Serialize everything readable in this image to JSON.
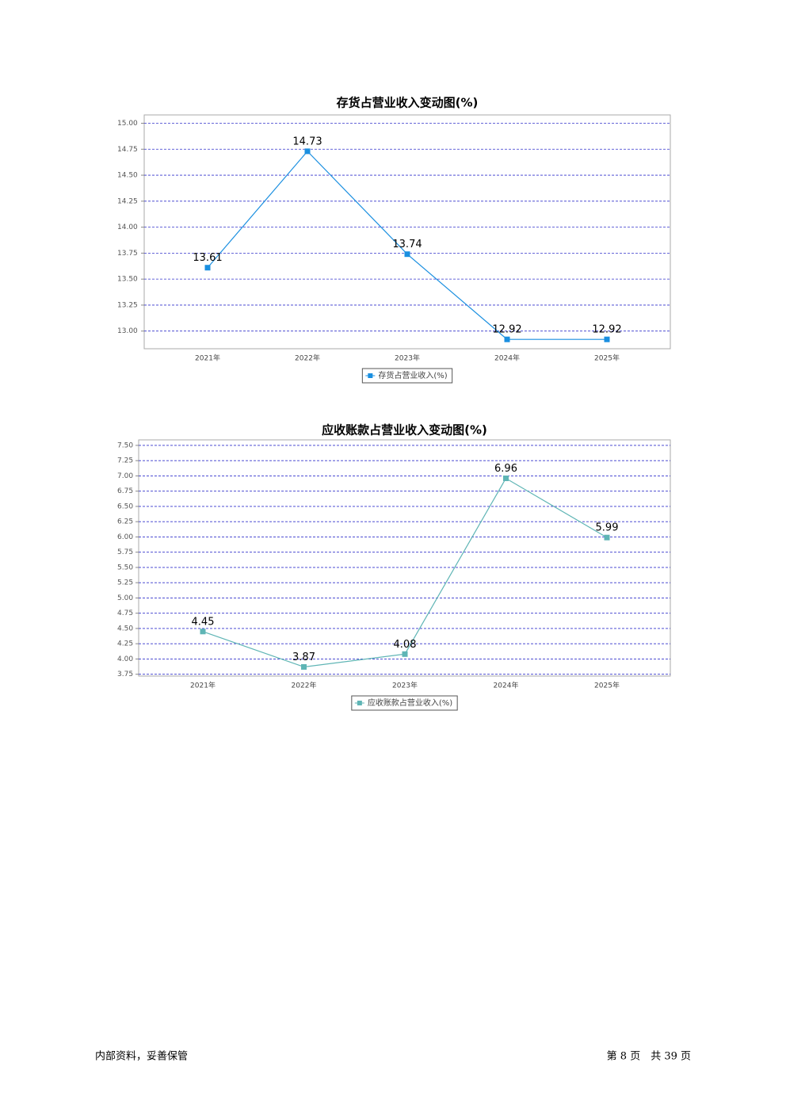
{
  "chart_data": [
    {
      "type": "line",
      "title": "存货占营业收入变动图(%)",
      "categories": [
        "2021年",
        "2022年",
        "2023年",
        "2024年",
        "2025年"
      ],
      "series": [
        {
          "name": "存货占营业收入(%)",
          "color": "#1a8fe0",
          "values": [
            13.61,
            14.73,
            13.74,
            12.92,
            12.92
          ]
        }
      ],
      "ylim": [
        12.83,
        15.08
      ],
      "yticks": [
        {
          "value": 13,
          "label": "13.00"
        },
        13.25,
        {
          "value": 13.5,
          "label": "13.50"
        },
        13.75,
        {
          "value": 14,
          "label": "14.00"
        },
        14.25,
        {
          "value": 14.5,
          "label": "14.50"
        },
        14.75,
        {
          "value": 15,
          "label": "15.00"
        }
      ],
      "grid": true
    },
    {
      "type": "line",
      "title": "应收账款占营业收入变动图(%)",
      "categories": [
        "2021年",
        "2022年",
        "2023年",
        "2024年",
        "2025年"
      ],
      "series": [
        {
          "name": "应收账款占营业收入(%)",
          "color": "#5fb5b5",
          "values": [
            4.45,
            3.87,
            4.08,
            6.96,
            5.99
          ]
        }
      ],
      "ylim": [
        3.72,
        7.59
      ],
      "yticks": [
        3.75,
        {
          "value": 4,
          "label": "4.00"
        },
        4.25,
        {
          "value": 4.5,
          "label": "4.50"
        },
        4.75,
        {
          "value": 5,
          "label": "5.00"
        },
        5.25,
        {
          "value": 5.5,
          "label": "5.50"
        },
        5.75,
        {
          "value": 6,
          "label": "6.00"
        },
        6.25,
        {
          "value": 6.5,
          "label": "6.50"
        },
        6.75,
        {
          "value": 7,
          "label": "7.00"
        },
        7.25,
        {
          "value": 7.5,
          "label": "7.50"
        }
      ],
      "grid": true
    }
  ],
  "footer": {
    "left": "内部资料，妥善保管",
    "right": "第 8 页　共 39 页"
  }
}
